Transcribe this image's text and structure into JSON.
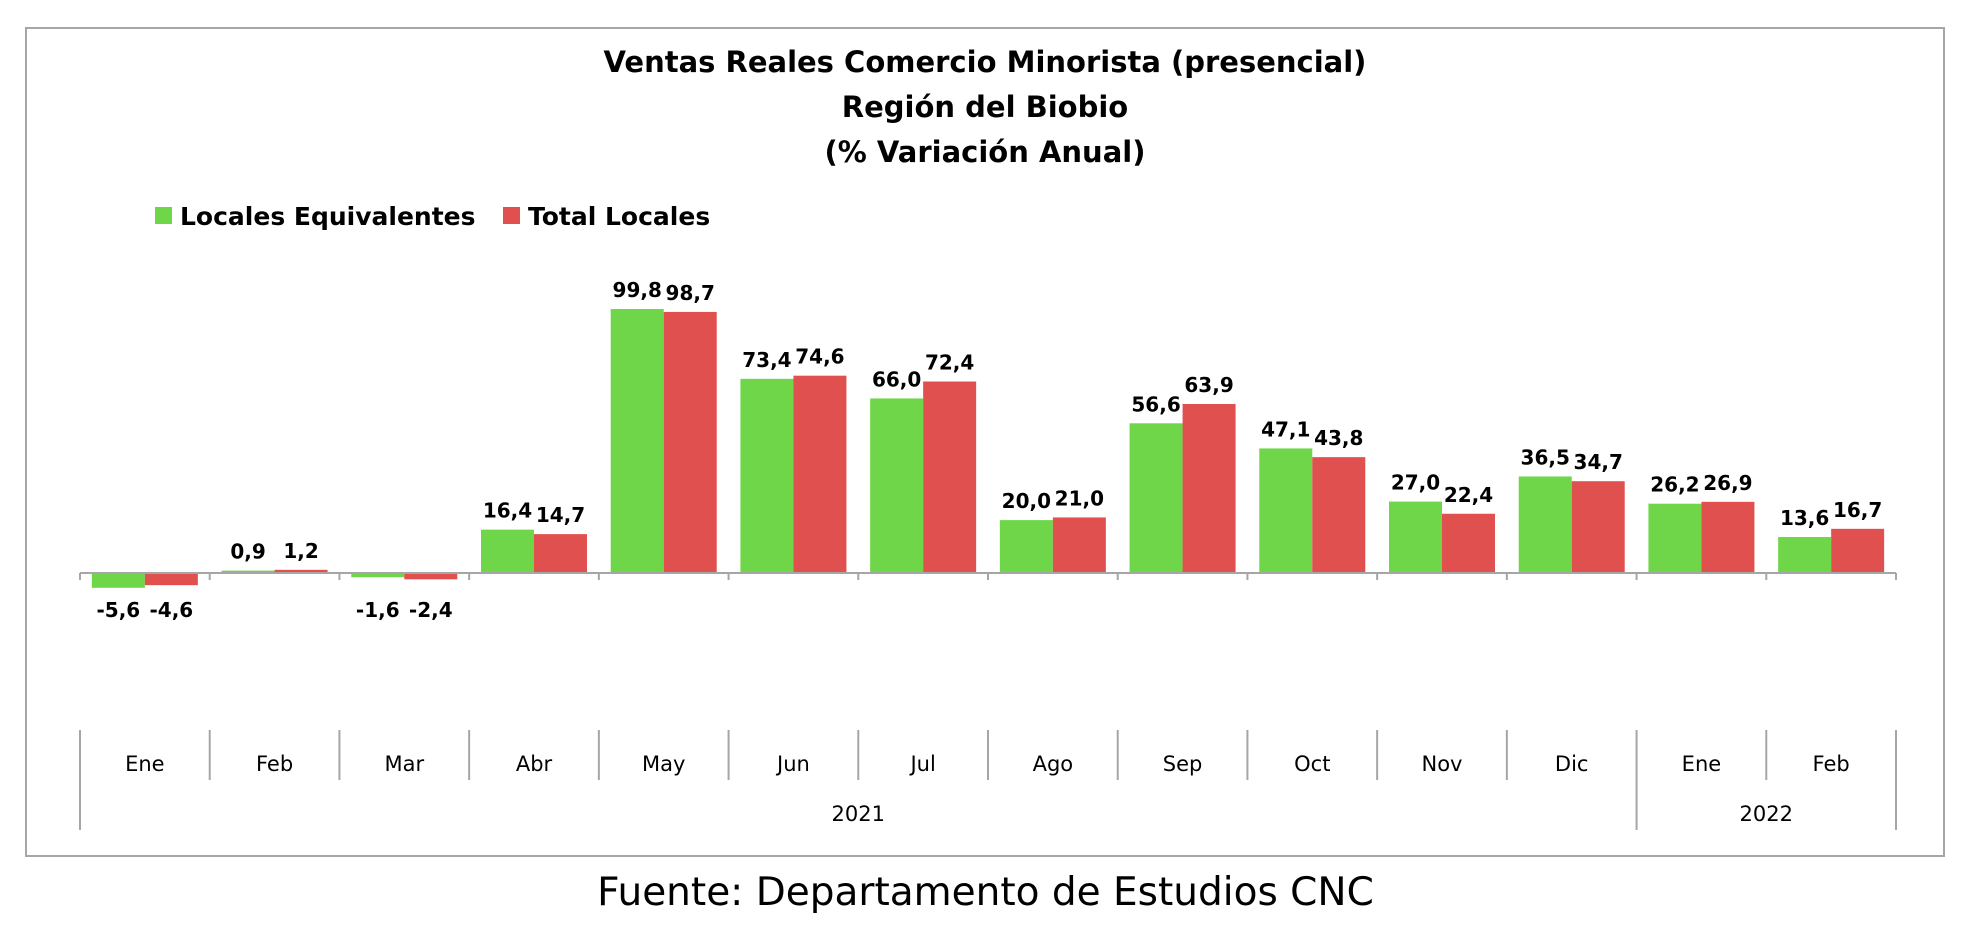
{
  "chart_data": {
    "type": "bar",
    "title": [
      "Ventas Reales Comercio Minorista (presencial)",
      "Región del Biobio",
      "(% Variación Anual)"
    ],
    "categories": [
      "Ene",
      "Feb",
      "Mar",
      "Abr",
      "May",
      "Jun",
      "Jul",
      "Ago",
      "Sep",
      "Oct",
      "Nov",
      "Dic",
      "Ene",
      "Feb"
    ],
    "year_groups": [
      {
        "label": "2021",
        "count": 12
      },
      {
        "label": "2022",
        "count": 2
      }
    ],
    "series": [
      {
        "name": "Locales Equivalentes",
        "color": "#6fd64a",
        "values": [
          -5.6,
          0.9,
          -1.6,
          16.4,
          99.8,
          73.4,
          66.0,
          20.0,
          56.6,
          47.1,
          27.0,
          36.5,
          26.2,
          13.6
        ],
        "labels": [
          "-5,6",
          "0,9",
          "-1,6",
          "16,4",
          "99,8",
          "73,4",
          "66,0",
          "20,0",
          "56,6",
          "47,1",
          "27,0",
          "36,5",
          "26,2",
          "13,6"
        ]
      },
      {
        "name": "Total Locales",
        "color": "#e0504e",
        "values": [
          -4.6,
          1.2,
          -2.4,
          14.7,
          98.7,
          74.6,
          72.4,
          21.0,
          63.9,
          43.8,
          22.4,
          34.7,
          26.9,
          16.7
        ],
        "labels": [
          "-4,6",
          "1,2",
          "-2,4",
          "14,7",
          "98,7",
          "74,6",
          "72,4",
          "21,0",
          "63,9",
          "43,8",
          "22,4",
          "34,7",
          "26,9",
          "16,7"
        ]
      }
    ],
    "legend_position": "top-left",
    "grid": false
  },
  "source": "Fuente: Departamento de Estudios CNC"
}
